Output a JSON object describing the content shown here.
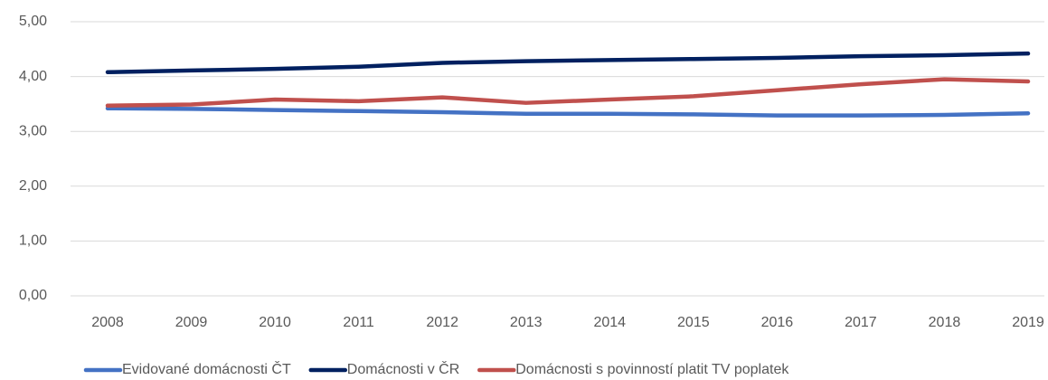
{
  "chart_data": {
    "type": "line",
    "categories": [
      "2008",
      "2009",
      "2010",
      "2011",
      "2012",
      "2013",
      "2014",
      "2015",
      "2016",
      "2017",
      "2018",
      "2019"
    ],
    "series": [
      {
        "name": "Evidované domácnosti ČT",
        "color": "#4472c4",
        "values": [
          3.42,
          3.41,
          3.39,
          3.37,
          3.35,
          3.32,
          3.32,
          3.31,
          3.29,
          3.29,
          3.3,
          3.33
        ]
      },
      {
        "name": "Domácnosti v ČR",
        "color": "#002060",
        "values": [
          4.08,
          4.11,
          4.14,
          4.18,
          4.25,
          4.28,
          4.3,
          4.32,
          4.34,
          4.37,
          4.39,
          4.42
        ]
      },
      {
        "name": "Domácnosti s povinností platit TV poplatek",
        "color": "#c0504d",
        "values": [
          3.47,
          3.49,
          3.58,
          3.55,
          3.62,
          3.52,
          3.58,
          3.64,
          3.75,
          3.86,
          3.95,
          3.91
        ]
      }
    ],
    "ylim": [
      0,
      5
    ],
    "yticks": [
      {
        "value": 0,
        "label": "0,00"
      },
      {
        "value": 1,
        "label": "1,00"
      },
      {
        "value": 2,
        "label": "2,00"
      },
      {
        "value": 3,
        "label": "3,00"
      },
      {
        "value": 4,
        "label": "4,00"
      },
      {
        "value": 5,
        "label": "5,00"
      }
    ],
    "grid": true,
    "legend": "bottom"
  }
}
